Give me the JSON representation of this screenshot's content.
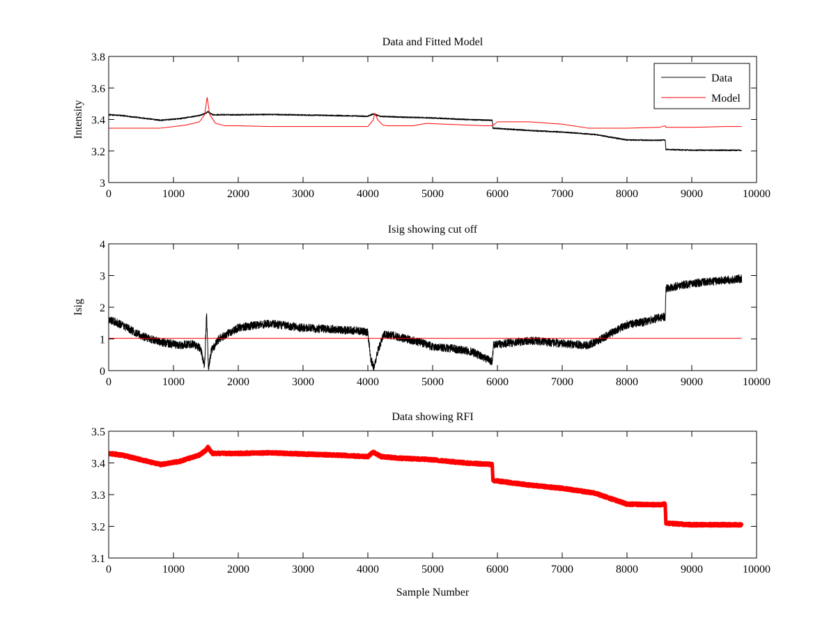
{
  "chart_data": [
    {
      "type": "line",
      "title": "Data and Fitted Model",
      "xlabel": "",
      "ylabel": "Intensity",
      "xlim": [
        0,
        10000
      ],
      "ylim": [
        3,
        3.8
      ],
      "xticks": [
        0,
        1000,
        2000,
        3000,
        4000,
        5000,
        6000,
        7000,
        8000,
        9000,
        10000
      ],
      "yticks": [
        3,
        3.2,
        3.4,
        3.6,
        3.8
      ],
      "ytick_labels": [
        "3",
        "3.2",
        "3.4",
        "3.6",
        "3.8"
      ],
      "legend": "top-right",
      "grid": false,
      "series": [
        {
          "name": "Data",
          "color": "#000000",
          "noise": 0.004,
          "x": [
            0,
            200,
            500,
            800,
            1100,
            1400,
            1500,
            1530,
            1600,
            2000,
            2500,
            3000,
            3500,
            4000,
            4080,
            4120,
            4200,
            4500,
            5000,
            5500,
            5920,
            5930,
            6500,
            7000,
            7500,
            8000,
            8500,
            8590,
            8600,
            9000,
            9500,
            9770
          ],
          "y": [
            3.43,
            3.425,
            3.41,
            3.395,
            3.405,
            3.425,
            3.44,
            3.45,
            3.43,
            3.43,
            3.432,
            3.428,
            3.425,
            3.42,
            3.435,
            3.43,
            3.42,
            3.415,
            3.41,
            3.4,
            3.395,
            3.345,
            3.33,
            3.32,
            3.305,
            3.27,
            3.268,
            3.27,
            3.21,
            3.205,
            3.205,
            3.205
          ]
        },
        {
          "name": "Model",
          "color": "#ff0000",
          "noise": 0,
          "x": [
            0,
            800,
            1200,
            1400,
            1480,
            1520,
            1560,
            1650,
            1800,
            2000,
            2500,
            3000,
            3500,
            4000,
            4080,
            4110,
            4150,
            4230,
            4300,
            4700,
            4900,
            5200,
            5800,
            5920,
            6000,
            6500,
            7000,
            7400,
            8000,
            8500,
            8590,
            8600,
            9000,
            9500,
            9770
          ],
          "y": [
            3.345,
            3.345,
            3.365,
            3.385,
            3.43,
            3.54,
            3.43,
            3.375,
            3.36,
            3.36,
            3.355,
            3.355,
            3.355,
            3.355,
            3.395,
            3.44,
            3.4,
            3.365,
            3.36,
            3.36,
            3.375,
            3.37,
            3.36,
            3.36,
            3.385,
            3.385,
            3.37,
            3.345,
            3.345,
            3.35,
            3.36,
            3.35,
            3.35,
            3.355,
            3.355
          ]
        }
      ]
    },
    {
      "type": "line",
      "title": "Isig showing cut off",
      "xlabel": "",
      "ylabel": "Isig",
      "xlim": [
        0,
        10000
      ],
      "ylim": [
        0,
        4
      ],
      "xticks": [
        0,
        1000,
        2000,
        3000,
        4000,
        5000,
        6000,
        7000,
        8000,
        9000,
        10000
      ],
      "yticks": [
        0,
        1,
        2,
        3,
        4
      ],
      "ytick_labels": [
        "0",
        "1",
        "2",
        "3",
        "4"
      ],
      "grid": false,
      "series": [
        {
          "color": "#000000",
          "noise": 0.13,
          "x": [
            0,
            200,
            500,
            800,
            1100,
            1300,
            1420,
            1480,
            1510,
            1540,
            1580,
            1700,
            2000,
            2300,
            2500,
            3000,
            3500,
            3900,
            4000,
            4050,
            4100,
            4150,
            4250,
            4400,
            4600,
            4800,
            5000,
            5300,
            5600,
            5850,
            5920,
            5940,
            6100,
            6500,
            7000,
            7400,
            7600,
            8000,
            8300,
            8550,
            8590,
            8600,
            9000,
            9500,
            9770
          ],
          "y": [
            1.6,
            1.45,
            1.1,
            0.9,
            0.8,
            0.85,
            0.7,
            0.1,
            1.8,
            0.05,
            0.6,
            1.0,
            1.35,
            1.45,
            1.48,
            1.35,
            1.3,
            1.25,
            1.2,
            0.3,
            0.1,
            0.6,
            1.15,
            1.1,
            1.0,
            0.9,
            0.75,
            0.7,
            0.6,
            0.35,
            0.3,
            0.8,
            0.85,
            0.95,
            0.85,
            0.8,
            1.0,
            1.45,
            1.55,
            1.7,
            1.7,
            2.6,
            2.75,
            2.85,
            2.9
          ]
        },
        {
          "name": "cut off",
          "color": "#ff0000",
          "noise": 0,
          "x": [
            0,
            9770
          ],
          "y": [
            1.02,
            1.02
          ]
        }
      ]
    },
    {
      "type": "scatter",
      "title": "Data showing RFI",
      "xlabel": "Sample Number",
      "ylabel": "",
      "xlim": [
        0,
        10000
      ],
      "ylim": [
        3.1,
        3.5
      ],
      "xticks": [
        0,
        1000,
        2000,
        3000,
        4000,
        5000,
        6000,
        7000,
        8000,
        9000,
        10000
      ],
      "yticks": [
        3.1,
        3.2,
        3.3,
        3.4,
        3.5
      ],
      "ytick_labels": [
        "3.1",
        "3.2",
        "3.3",
        "3.4",
        "3.5"
      ],
      "grid": false,
      "series": [
        {
          "color": "#ff0000",
          "noise": 0.004,
          "x": [
            0,
            200,
            500,
            800,
            1100,
            1400,
            1500,
            1530,
            1600,
            2000,
            2500,
            3000,
            3500,
            4000,
            4080,
            4120,
            4200,
            4500,
            5000,
            5500,
            5920,
            5930,
            6500,
            7000,
            7500,
            8000,
            8500,
            8590,
            8600,
            9000,
            9500,
            9770
          ],
          "y": [
            3.43,
            3.425,
            3.41,
            3.395,
            3.405,
            3.425,
            3.44,
            3.45,
            3.43,
            3.43,
            3.432,
            3.428,
            3.425,
            3.42,
            3.435,
            3.43,
            3.42,
            3.415,
            3.41,
            3.4,
            3.395,
            3.345,
            3.33,
            3.32,
            3.305,
            3.27,
            3.268,
            3.27,
            3.21,
            3.205,
            3.205,
            3.205
          ]
        }
      ]
    }
  ]
}
